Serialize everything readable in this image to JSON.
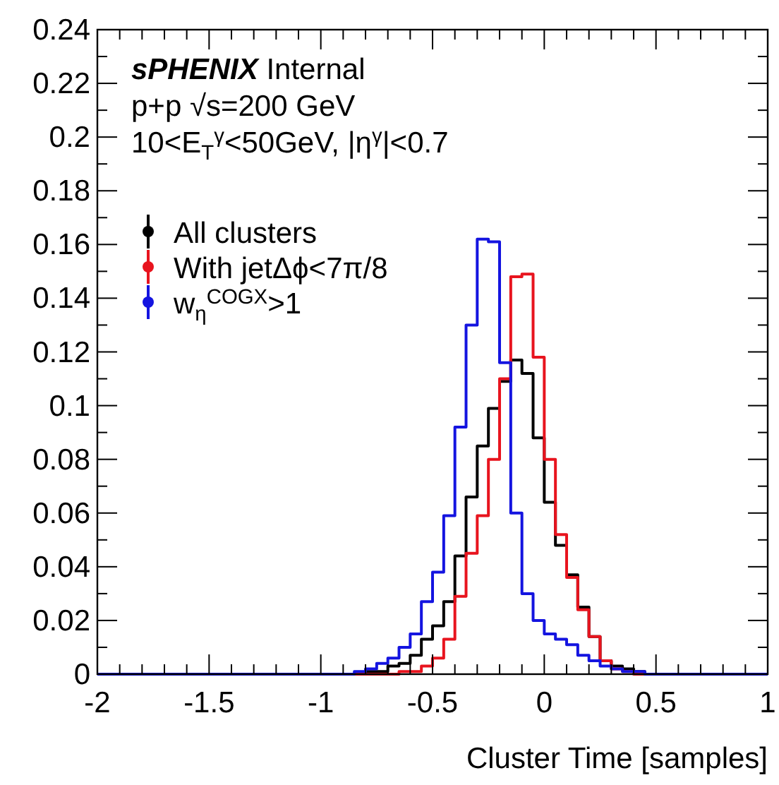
{
  "chart_data": {
    "type": "histogram",
    "xlabel": "Cluster Time [samples]",
    "annotations": [
      "sPHENIX Internal",
      "p+p √s=200 GeV",
      "10<E$_{T}$$^{γ}$<50GeV, |η$^{γ}$|<0.7"
    ],
    "bins": [
      -2,
      -1.95,
      -1.9,
      -1.85,
      -1.8,
      -1.75,
      -1.7,
      -1.65,
      -1.6,
      -1.55,
      -1.5,
      -1.45,
      -1.4,
      -1.35,
      -1.3,
      -1.25,
      -1.2,
      -1.15,
      -1.1,
      -1.05,
      -1,
      -0.95,
      -0.9,
      -0.85,
      -0.8,
      -0.75,
      -0.7,
      -0.65,
      -0.6,
      -0.55,
      -0.5,
      -0.45,
      -0.4,
      -0.35,
      -0.3,
      -0.25,
      -0.2,
      -0.15,
      -0.1,
      -0.05,
      0,
      0.05,
      0.1,
      0.15,
      0.2,
      0.25,
      0.3,
      0.35,
      0.4,
      0.45,
      0.5,
      0.55,
      0.6,
      0.65,
      0.7,
      0.75,
      0.8,
      0.85,
      0.9,
      0.95,
      1
    ],
    "series": [
      {
        "name": "All clusters",
        "color": "#000000",
        "values": [
          0,
          0,
          0,
          0,
          0,
          0,
          0,
          0,
          0,
          0,
          0,
          0,
          0,
          0,
          0,
          0,
          0,
          0,
          0,
          0,
          0,
          0,
          0,
          0,
          0.001,
          0.001,
          0.003,
          0.004,
          0.007,
          0.013,
          0.018,
          0.027,
          0.044,
          0.066,
          0.085,
          0.099,
          0.109,
          0.117,
          0.112,
          0.088,
          0.064,
          0.048,
          0.037,
          0.025,
          0.014,
          0.005,
          0.003,
          0.002,
          0.001,
          0,
          0,
          0,
          0,
          0,
          0,
          0,
          0,
          0,
          0,
          0
        ]
      },
      {
        "name": "With jetΔϕ<7π/8",
        "color": "#e8141e",
        "values": [
          0,
          0,
          0,
          0,
          0,
          0,
          0,
          0,
          0,
          0,
          0,
          0,
          0,
          0,
          0,
          0,
          0,
          0,
          0,
          0,
          0,
          0,
          0,
          0,
          0,
          0,
          0,
          0.001,
          0.001,
          0.003,
          0.006,
          0.013,
          0.029,
          0.045,
          0.059,
          0.08,
          0.11,
          0.148,
          0.149,
          0.118,
          0.08,
          0.052,
          0.036,
          0.024,
          0.014,
          0.005,
          0.002,
          0.001,
          0,
          0,
          0,
          0,
          0,
          0,
          0,
          0,
          0,
          0,
          0,
          0
        ]
      },
      {
        "name": "w$_{η}$$^{COGX}$>1",
        "color": "#1414e0",
        "values": [
          0,
          0,
          0,
          0,
          0,
          0,
          0,
          0,
          0,
          0,
          0,
          0,
          0,
          0,
          0,
          0,
          0,
          0,
          0,
          0,
          0,
          0,
          0,
          0.001,
          0.002,
          0.004,
          0.006,
          0.01,
          0.015,
          0.027,
          0.038,
          0.059,
          0.092,
          0.13,
          0.162,
          0.161,
          0.116,
          0.06,
          0.03,
          0.02,
          0.015,
          0.013,
          0.011,
          0.007,
          0.005,
          0.003,
          0.002,
          0.001,
          0.001,
          0,
          0,
          0,
          0,
          0,
          0,
          0,
          0,
          0,
          0,
          0
        ]
      }
    ],
    "xlim": [
      -2,
      1
    ],
    "xticks": [
      -2,
      -1.5,
      -1,
      -0.5,
      0,
      0.5,
      1
    ],
    "ylim": [
      0,
      0.24
    ],
    "yticks": [
      0,
      0.02,
      0.04,
      0.06,
      0.08,
      0.1,
      0.12,
      0.14,
      0.16,
      0.18,
      0.2,
      0.22,
      0.24
    ],
    "grid": false,
    "legend": "top left"
  }
}
